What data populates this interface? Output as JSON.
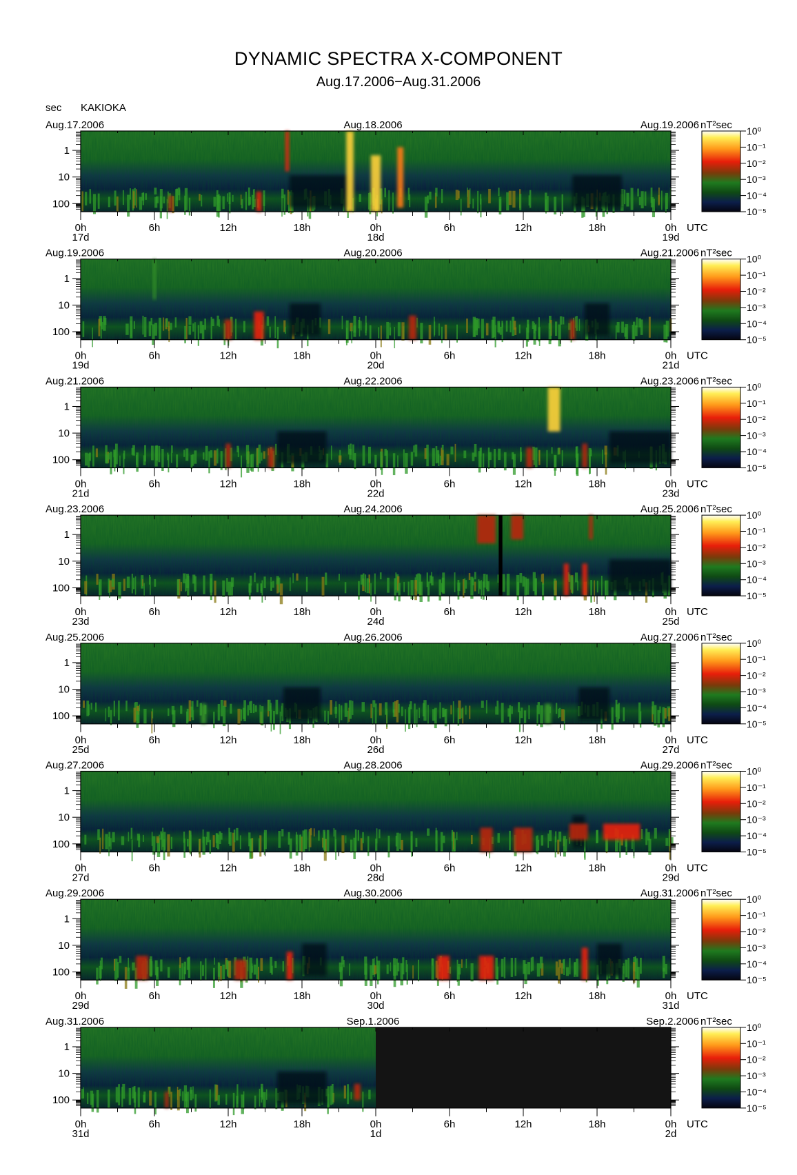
{
  "title": "DYNAMIC SPECTRA X-COMPONENT",
  "subtitle": "Aug.17.2006−Aug.31.2006",
  "y_axis_unit": "sec",
  "station": "KAKIOKA",
  "time_unit": "UTC",
  "colorbar_unit": "nT²sec",
  "colors": {
    "spectrum_low": "#0a0a1e",
    "spectrum_mid": "#1f7a1f",
    "spectrum_high": "#ffee55",
    "no_data": "#141414"
  },
  "chart_data": {
    "type": "heatmap",
    "description_scale": "log",
    "y_ticks": [
      "1",
      "10",
      "100"
    ],
    "x_ticks": [
      "0h",
      "6h",
      "12h",
      "18h",
      "0h",
      "6h",
      "12h",
      "18h",
      "0h"
    ],
    "colorbar": {
      "ticks": [
        "10⁰",
        "10⁻¹",
        "10⁻²",
        "10⁻³",
        "10⁻⁴",
        "10⁻⁵"
      ],
      "range": [
        1e-05,
        1
      ]
    },
    "panels": [
      {
        "date_left": "Aug.17.2006",
        "date_mid": "Aug.18.2006",
        "date_right": "Aug.19.2006",
        "day_left": "17d",
        "day_mid": "18d",
        "day_right": "19d",
        "events": [
          {
            "t": 21.9,
            "w": 0.6,
            "p": [
              0.0,
              1.0
            ],
            "v": 0.95
          },
          {
            "t": 24.0,
            "w": 0.8,
            "p": [
              0.3,
              1.0
            ],
            "v": 1.0
          },
          {
            "t": 26.0,
            "w": 0.5,
            "p": [
              0.2,
              0.95
            ],
            "v": 0.9
          },
          {
            "t": 16.8,
            "w": 0.3,
            "p": [
              0.0,
              0.5
            ],
            "v": 0.7
          },
          {
            "t": 14.5,
            "w": 0.4,
            "p": [
              0.75,
              1.0
            ],
            "v": 0.65
          },
          {
            "t": 7.3,
            "w": 0.3,
            "p": [
              0.8,
              1.0
            ],
            "v": 0.6
          }
        ],
        "quiet": [
          [
            17.0,
            22.0
          ],
          [
            40.0,
            44.0
          ]
        ],
        "nodata_from": null
      },
      {
        "date_left": "Aug.19.2006",
        "date_mid": "Aug.20.2006",
        "date_right": "Aug.21.2006",
        "day_left": "19d",
        "day_mid": "20d",
        "day_right": "21d",
        "events": [
          {
            "t": 6.0,
            "w": 0.2,
            "p": [
              0.0,
              0.5
            ],
            "v": 0.45
          },
          {
            "t": 14.5,
            "w": 0.8,
            "p": [
              0.65,
              1.0
            ],
            "v": 0.65
          },
          {
            "t": 12.0,
            "w": 0.6,
            "p": [
              0.75,
              1.0
            ],
            "v": 0.55
          },
          {
            "t": 27.0,
            "w": 0.6,
            "p": [
              0.7,
              1.0
            ],
            "v": 0.5
          },
          {
            "t": 40.0,
            "w": 0.4,
            "p": [
              0.75,
              1.0
            ],
            "v": 0.6
          }
        ],
        "quiet": [
          [
            17.0,
            19.5
          ],
          [
            41.0,
            43.0
          ]
        ],
        "nodata_from": null
      },
      {
        "date_left": "Aug.21.2006",
        "date_mid": "Aug.22.2006",
        "date_right": "Aug.23.2006",
        "day_left": "21d",
        "day_mid": "22d",
        "day_right": "23d",
        "events": [
          {
            "t": 38.5,
            "w": 1.0,
            "p": [
              0.0,
              0.55
            ],
            "v": 0.95
          },
          {
            "t": 36.5,
            "w": 0.5,
            "p": [
              0.75,
              1.0
            ],
            "v": 0.6
          },
          {
            "t": 41.0,
            "w": 0.4,
            "p": [
              0.7,
              1.0
            ],
            "v": 0.55
          },
          {
            "t": 12.0,
            "w": 0.4,
            "p": [
              0.7,
              1.0
            ],
            "v": 0.55
          },
          {
            "t": 15.5,
            "w": 0.5,
            "p": [
              0.75,
              1.0
            ],
            "v": 0.5
          }
        ],
        "quiet": [
          [
            16.0,
            20.0
          ],
          [
            43.0,
            48.0
          ]
        ],
        "nodata_from": null
      },
      {
        "date_left": "Aug.23.2006",
        "date_mid": "Aug.24.2006",
        "date_right": "Aug.25.2006",
        "day_left": "23d",
        "day_mid": "24d",
        "day_right": "25d",
        "events": [
          {
            "t": 33.0,
            "w": 1.5,
            "p": [
              0.0,
              0.35
            ],
            "v": 0.55
          },
          {
            "t": 35.5,
            "w": 1.0,
            "p": [
              0.0,
              0.3
            ],
            "v": 0.6
          },
          {
            "t": 39.5,
            "w": 0.4,
            "p": [
              0.6,
              1.0
            ],
            "v": 0.7
          },
          {
            "t": 41.0,
            "w": 0.4,
            "p": [
              0.6,
              1.0
            ],
            "v": 0.65
          },
          {
            "t": 41.5,
            "w": 0.3,
            "p": [
              0.0,
              0.3
            ],
            "v": 0.55
          }
        ],
        "quiet": [
          [
            43.0,
            48.0
          ]
        ],
        "gap": [
          34.0,
          34.3
        ],
        "nodata_from": null
      },
      {
        "date_left": "Aug.25.2006",
        "date_mid": "Aug.26.2006",
        "date_right": "Aug.27.2006",
        "day_left": "25d",
        "day_mid": "26d",
        "day_right": "27d",
        "events": [
          {
            "t": 10.0,
            "w": 0.4,
            "p": [
              0.75,
              1.0
            ],
            "v": 0.45
          },
          {
            "t": 38.0,
            "w": 0.5,
            "p": [
              0.75,
              1.0
            ],
            "v": 0.45
          }
        ],
        "quiet": [
          [
            16.5,
            19.5
          ],
          [
            40.5,
            43.0
          ]
        ],
        "nodata_from": null
      },
      {
        "date_left": "Aug.27.2006",
        "date_mid": "Aug.28.2006",
        "date_right": "Aug.29.2006",
        "day_left": "27d",
        "day_mid": "28d",
        "day_right": "29d",
        "events": [
          {
            "t": 36.0,
            "w": 1.5,
            "p": [
              0.7,
              1.0
            ],
            "v": 0.6
          },
          {
            "t": 44.0,
            "w": 3.0,
            "p": [
              0.65,
              0.85
            ],
            "v": 0.65
          },
          {
            "t": 40.5,
            "w": 1.5,
            "p": [
              0.65,
              0.85
            ],
            "v": 0.6
          },
          {
            "t": 33.0,
            "w": 1.0,
            "p": [
              0.7,
              1.0
            ],
            "v": 0.55
          }
        ],
        "quiet": [
          [
            40.0,
            41.0
          ]
        ],
        "nodata_from": null
      },
      {
        "date_left": "Aug.29.2006",
        "date_mid": "Aug.30.2006",
        "date_right": "Aug.31.2006",
        "day_left": "29d",
        "day_mid": "30d",
        "day_right": "31d",
        "events": [
          {
            "t": 33.0,
            "w": 1.2,
            "p": [
              0.7,
              1.0
            ],
            "v": 0.75
          },
          {
            "t": 29.5,
            "w": 1.0,
            "p": [
              0.7,
              1.0
            ],
            "v": 0.7
          },
          {
            "t": 17.0,
            "w": 0.5,
            "p": [
              0.65,
              1.0
            ],
            "v": 0.65
          },
          {
            "t": 41.0,
            "w": 0.5,
            "p": [
              0.6,
              1.0
            ],
            "v": 0.7
          },
          {
            "t": 5.0,
            "w": 1.0,
            "p": [
              0.7,
              1.0
            ],
            "v": 0.6
          },
          {
            "t": 13.0,
            "w": 1.0,
            "p": [
              0.75,
              1.0
            ],
            "v": 0.6
          }
        ],
        "quiet": [
          [
            42.0,
            44.0
          ],
          [
            18.0,
            20.0
          ]
        ],
        "nodata_from": null
      },
      {
        "date_left": "Aug.31.2006",
        "date_mid": "Sep.1.2006",
        "date_right": "Sep.2.2006",
        "day_left": "31d",
        "day_mid": "1d",
        "day_right": "2d",
        "events": [
          {
            "t": 7.0,
            "w": 0.3,
            "p": [
              0.8,
              1.0
            ],
            "v": 0.55
          },
          {
            "t": 22.5,
            "w": 0.5,
            "p": [
              0.7,
              0.9
            ],
            "v": 0.5
          }
        ],
        "quiet": [
          [
            16.0,
            20.0
          ]
        ],
        "nodata_from": 24.0
      }
    ]
  }
}
